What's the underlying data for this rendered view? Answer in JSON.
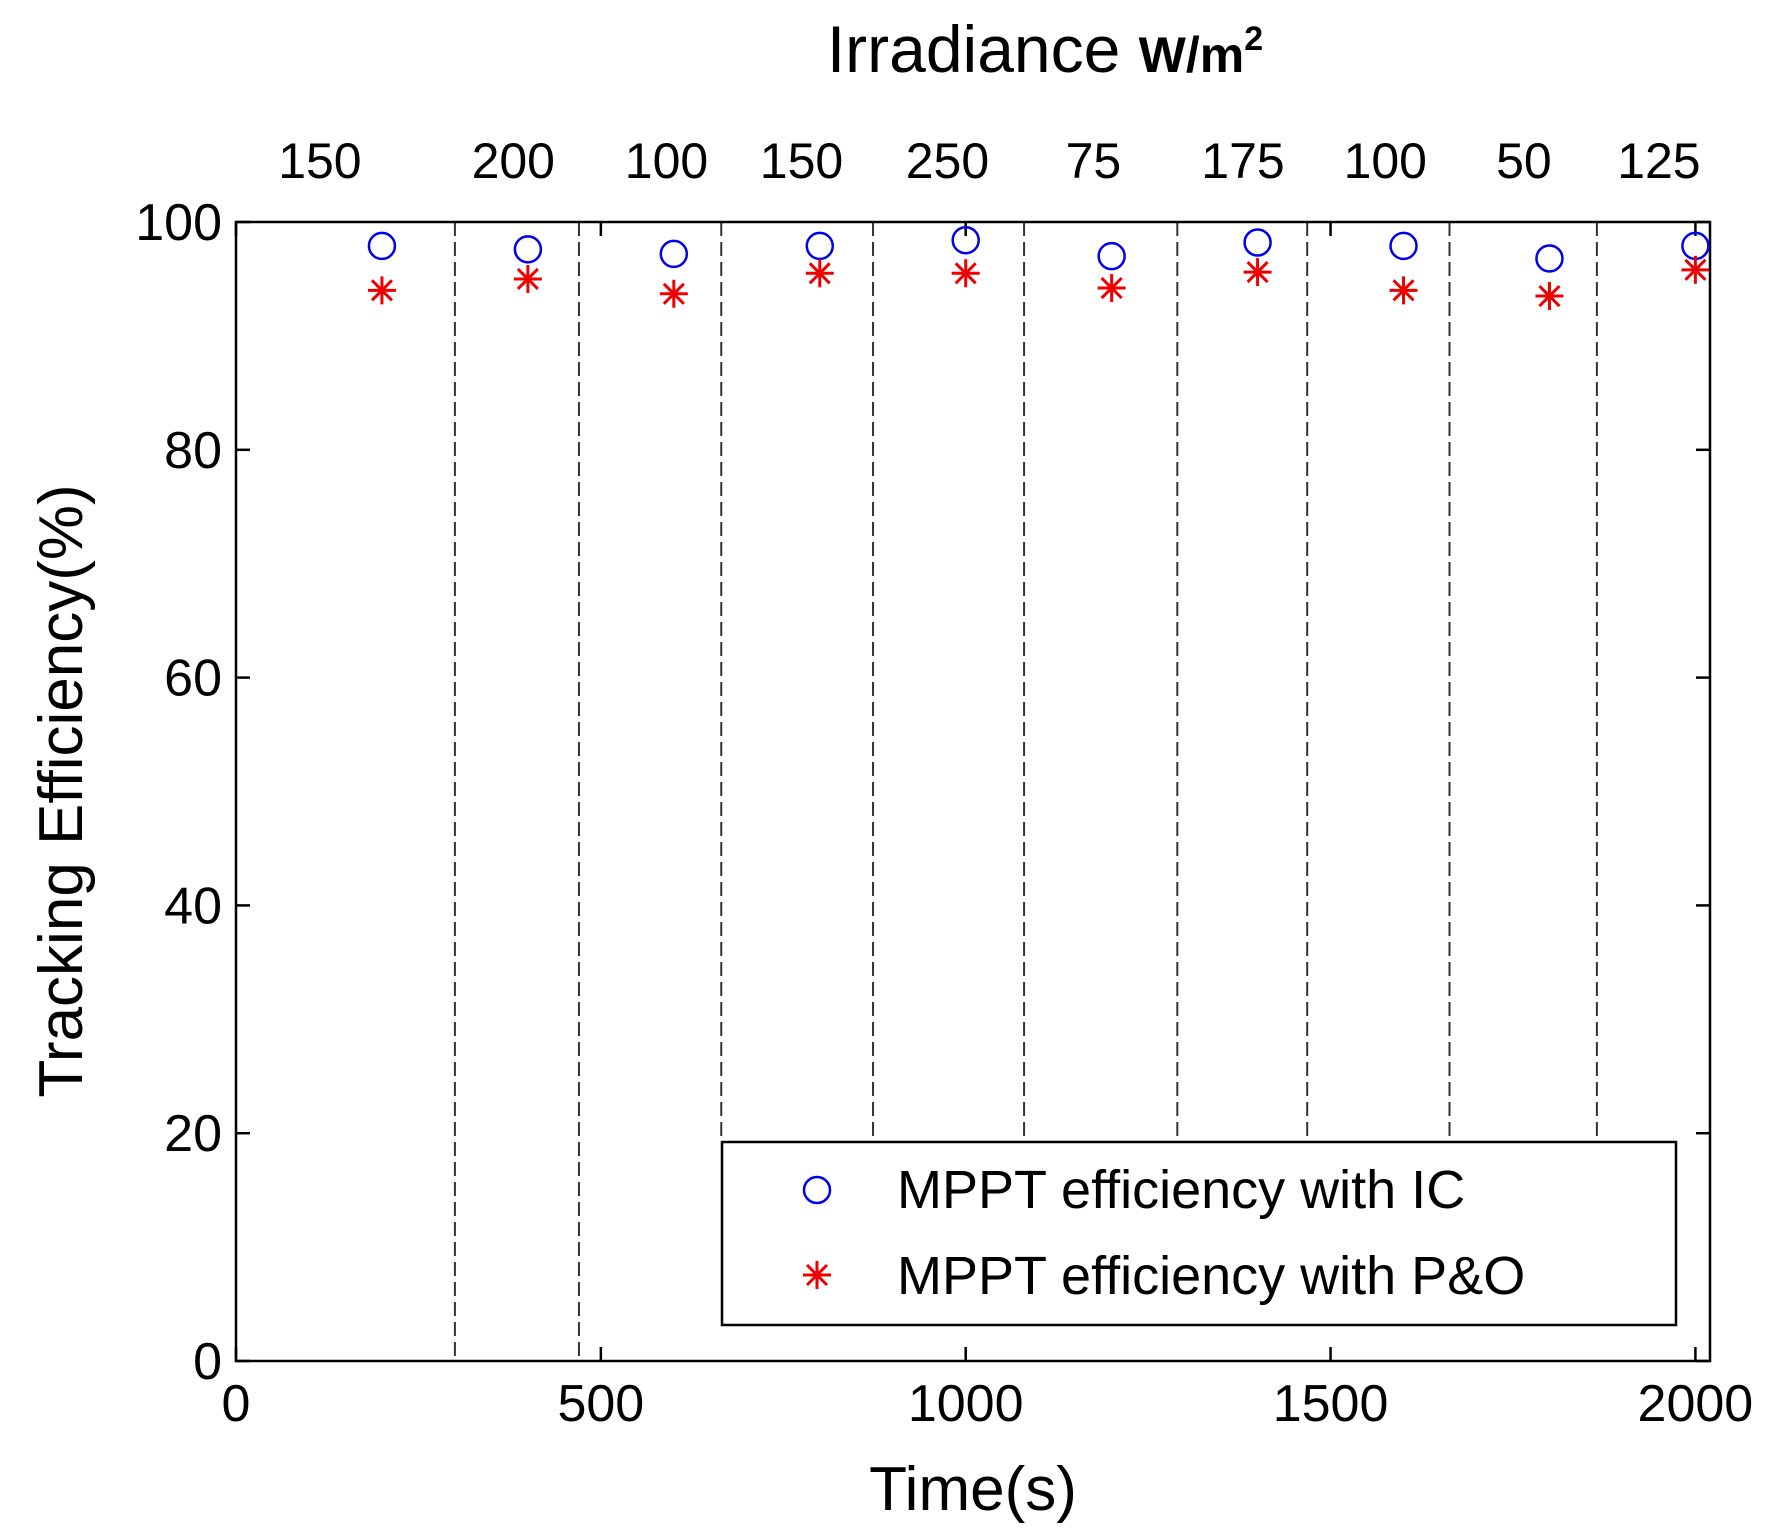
{
  "chart_data": {
    "type": "scatter",
    "title": "Irradiance W/m²",
    "title_main": "Irradiance ",
    "title_unit": "W/m",
    "title_unit_sup": "2",
    "xlabel": "Time(s)",
    "ylabel": "Tracking Efficiency(%)",
    "xlim": [
      0,
      2020
    ],
    "ylim": [
      0,
      100
    ],
    "xticks": [
      0,
      500,
      1000,
      1500,
      2000
    ],
    "yticks": [
      0,
      20,
      40,
      60,
      80,
      100
    ],
    "grid": false,
    "legend_position": "bottom-right",
    "segment_boundaries": [
      300,
      470,
      665,
      873,
      1080,
      1290,
      1468,
      1663,
      1865
    ],
    "irradiance_segments": [
      {
        "label": "150",
        "center": 115
      },
      {
        "label": "200",
        "center": 380
      },
      {
        "label": "100",
        "center": 590
      },
      {
        "label": "150",
        "center": 775
      },
      {
        "label": "250",
        "center": 975
      },
      {
        "label": "75",
        "center": 1175
      },
      {
        "label": "175",
        "center": 1380
      },
      {
        "label": "100",
        "center": 1575
      },
      {
        "label": "50",
        "center": 1765
      },
      {
        "label": "125",
        "center": 1950
      }
    ],
    "series": [
      {
        "name": "MPPT efficiency with IC",
        "marker": "circle",
        "color": "#0000ee",
        "x": [
          200,
          400,
          600,
          800,
          1000,
          1200,
          1400,
          1600,
          1800,
          2000
        ],
        "y": [
          97.9,
          97.6,
          97.2,
          97.9,
          98.4,
          97.0,
          98.2,
          97.9,
          96.8,
          97.9
        ]
      },
      {
        "name": "MPPT efficiency with P&O",
        "marker": "star",
        "color": "#ee0000",
        "x": [
          200,
          400,
          600,
          800,
          1000,
          1200,
          1400,
          1600,
          1800,
          2000
        ],
        "y": [
          94.0,
          95.0,
          93.7,
          95.5,
          95.5,
          94.2,
          95.6,
          94.0,
          93.5,
          95.8
        ]
      }
    ]
  }
}
